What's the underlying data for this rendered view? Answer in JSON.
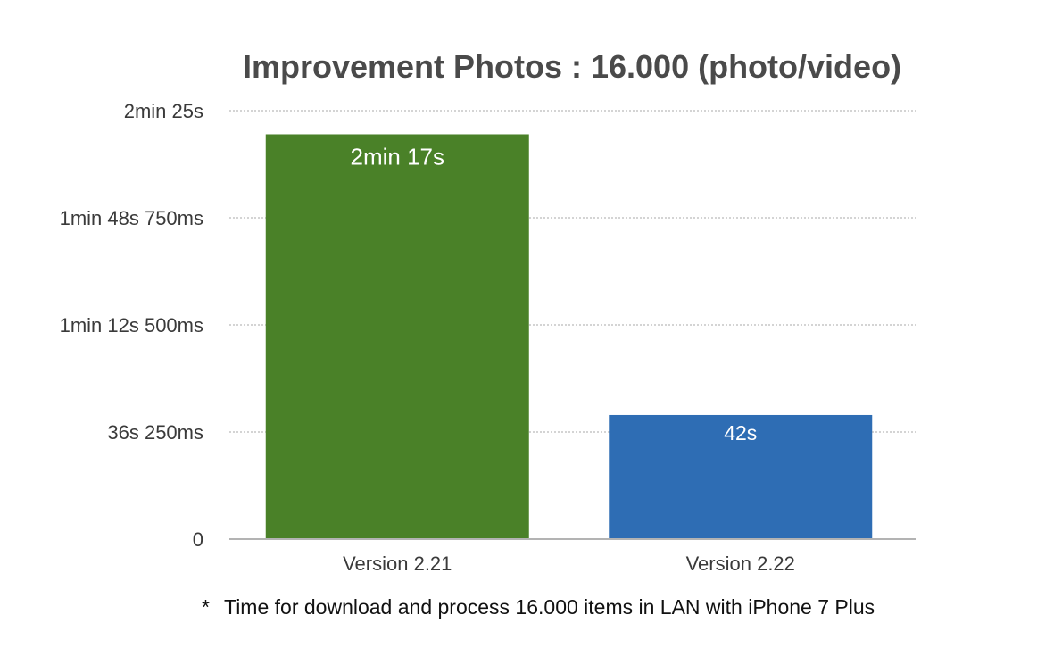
{
  "chart_data": {
    "type": "bar",
    "title": "Improvement Photos : 16.000 (photo/video)",
    "xlabel": "",
    "ylabel": "",
    "categories": [
      "Version 2.21",
      "Version 2.22"
    ],
    "values": [
      137,
      42
    ],
    "value_unit": "seconds",
    "data_labels": [
      "2min 17s",
      "42s"
    ],
    "bar_colors": [
      "#4a8128",
      "#2e6db4"
    ],
    "ylim": [
      0,
      145
    ],
    "y_ticks": [
      {
        "value": 0,
        "label": "0"
      },
      {
        "value": 36.25,
        "label": "36s 250ms"
      },
      {
        "value": 72.5,
        "label": "1min 12s 500ms"
      },
      {
        "value": 108.75,
        "label": "1min 48s 750ms"
      },
      {
        "value": 145,
        "label": "2min 25s"
      }
    ],
    "grid": true,
    "legend": "none"
  },
  "footnote": {
    "marker": "*",
    "text": "Time for download and process 16.000 items in LAN with iPhone 7 Plus"
  }
}
